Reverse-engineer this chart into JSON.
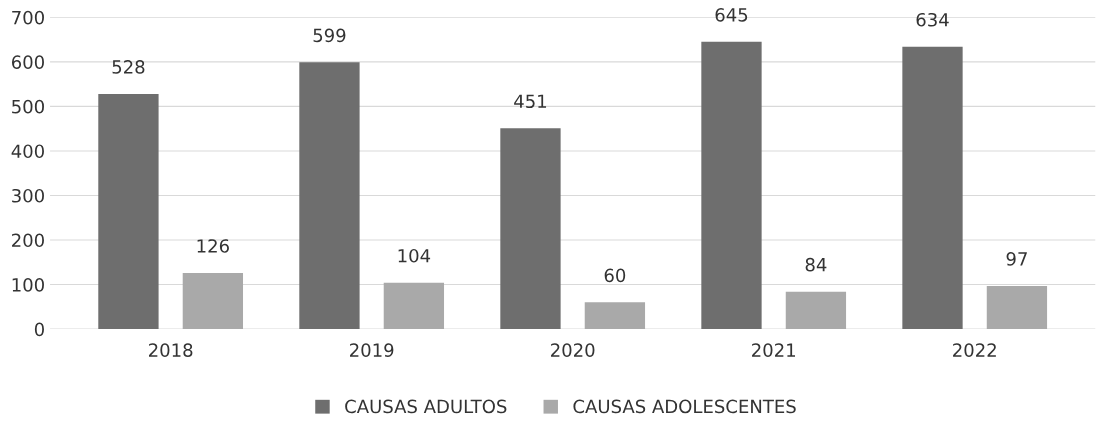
{
  "chart_data": {
    "type": "bar",
    "categories": [
      "2018",
      "2019",
      "2020",
      "2021",
      "2022"
    ],
    "series": [
      {
        "name": "CAUSAS ADULTOS",
        "color": "#6e6e6e",
        "values": [
          528,
          599,
          451,
          645,
          634
        ]
      },
      {
        "name": "CAUSAS ADOLESCENTES",
        "color": "#a9a9a9",
        "values": [
          126,
          104,
          60,
          84,
          97
        ]
      }
    ],
    "ylim": [
      0,
      700
    ],
    "yticks": [
      0,
      100,
      200,
      300,
      400,
      500,
      600,
      700
    ],
    "grid": "y",
    "legend": "bottom",
    "data_labels": true
  }
}
